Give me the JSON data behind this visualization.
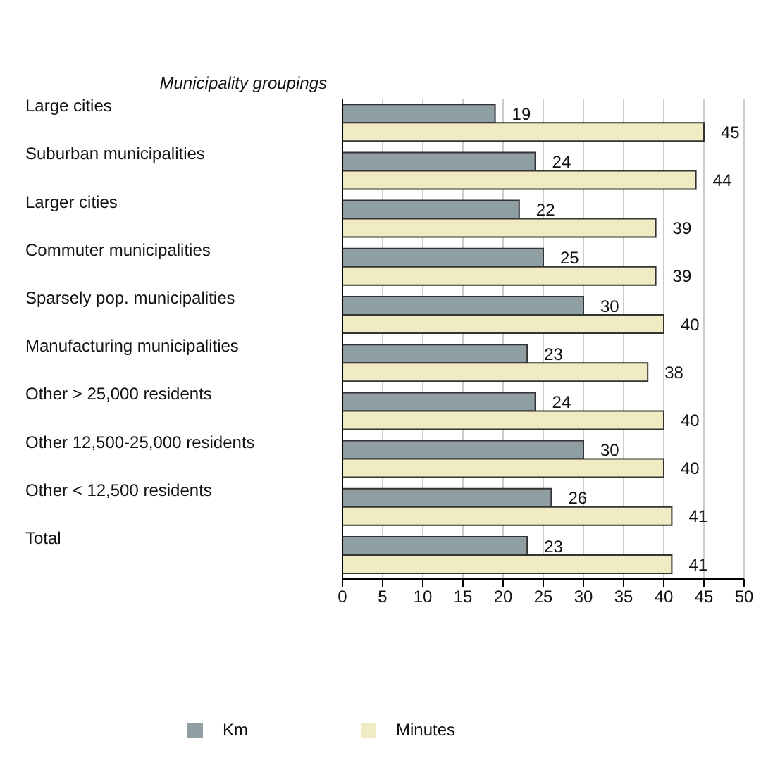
{
  "chart_data": {
    "type": "bar",
    "orientation": "horizontal",
    "ylabel": "Municipality groupings",
    "categories": [
      "Large cities",
      "Suburban municipalities",
      "Larger cities",
      "Commuter municipalities",
      "Sparsely pop. municipalities",
      "Manufacturing municipalities",
      "Other > 25,000 residents",
      "Other 12,500-25,000 residents",
      "Other < 12,500 residents",
      "Total"
    ],
    "series": [
      {
        "name": "Km",
        "color": "#8f9ea3",
        "values": [
          19,
          24,
          22,
          25,
          30,
          23,
          24,
          30,
          26,
          23
        ]
      },
      {
        "name": "Minutes",
        "color": "#f0ebc2",
        "values": [
          45,
          44,
          39,
          39,
          40,
          38,
          40,
          40,
          41,
          41
        ]
      }
    ],
    "xlim": [
      0,
      50
    ],
    "xticks": [
      0,
      5,
      10,
      15,
      20,
      25,
      30,
      35,
      40,
      45,
      50
    ],
    "grid": "x",
    "legend": "bottom",
    "data_labels": true
  }
}
